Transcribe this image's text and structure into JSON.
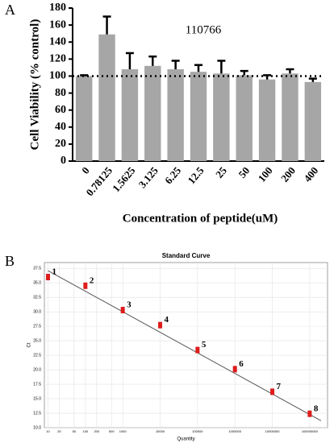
{
  "chart_data": [
    {
      "type": "bar",
      "panel_label": "A",
      "annotation": "110766",
      "y_label": "Cell Viability (% control)",
      "x_label": "Concentration of peptide(uM)",
      "categories": [
        "0",
        "0.78125",
        "1.5625",
        "3.125",
        "6.25",
        "12.5",
        "25",
        "50",
        "100",
        "200",
        "400"
      ],
      "values": [
        100,
        149,
        108,
        112,
        108,
        105,
        103,
        101,
        96,
        103,
        93
      ],
      "errors": [
        1,
        21,
        19,
        11,
        10,
        8,
        15,
        5,
        5,
        5,
        4
      ],
      "color": "#a6a6a6",
      "reference_line": 100,
      "ylim": [
        0,
        180
      ],
      "yticks": [
        0,
        20,
        40,
        60,
        80,
        100,
        120,
        140,
        160,
        180
      ]
    },
    {
      "type": "scatter",
      "panel_label": "B",
      "title": "Standard Curve",
      "x_label": "Quantity",
      "y_label": "Ct",
      "x": [
        10,
        100,
        1000,
        10000,
        100000,
        1000000,
        10000000,
        100000000
      ],
      "values": [
        36,
        34.5,
        30.3,
        27.7,
        23.4,
        20.1,
        16.2,
        12.4
      ],
      "point_labels": [
        "1",
        "2",
        "3",
        "4",
        "5",
        "6",
        "7",
        "8"
      ],
      "color": "#dd1c1c",
      "fit_line": {
        "x": [
          10,
          200000000
        ],
        "values": [
          37.1,
          11.2
        ]
      },
      "x_log": true,
      "grid": true,
      "xlim": [
        8,
        300000000
      ],
      "ylim": [
        10,
        38.5
      ],
      "xticks": [
        10,
        20,
        50,
        100,
        200,
        500,
        1000,
        10000,
        100000,
        1000000,
        10000000,
        100000000
      ],
      "yticks": [
        {
          "value": 10,
          "label": "10.0"
        },
        {
          "value": 12.5,
          "label": "12.5"
        },
        {
          "value": 15,
          "label": "15.0"
        },
        {
          "value": 17.5,
          "label": "17.5"
        },
        {
          "value": 20,
          "label": "20.0"
        },
        {
          "value": 22.5,
          "label": "22.5"
        },
        {
          "value": 25,
          "label": "25.0"
        },
        {
          "value": 27.5,
          "label": "27.5"
        },
        {
          "value": 30,
          "label": "30.0"
        },
        {
          "value": 32.5,
          "label": "32.5"
        },
        {
          "value": 35,
          "label": "35.0"
        },
        {
          "value": 37.5,
          "label": "37.5"
        }
      ]
    }
  ]
}
